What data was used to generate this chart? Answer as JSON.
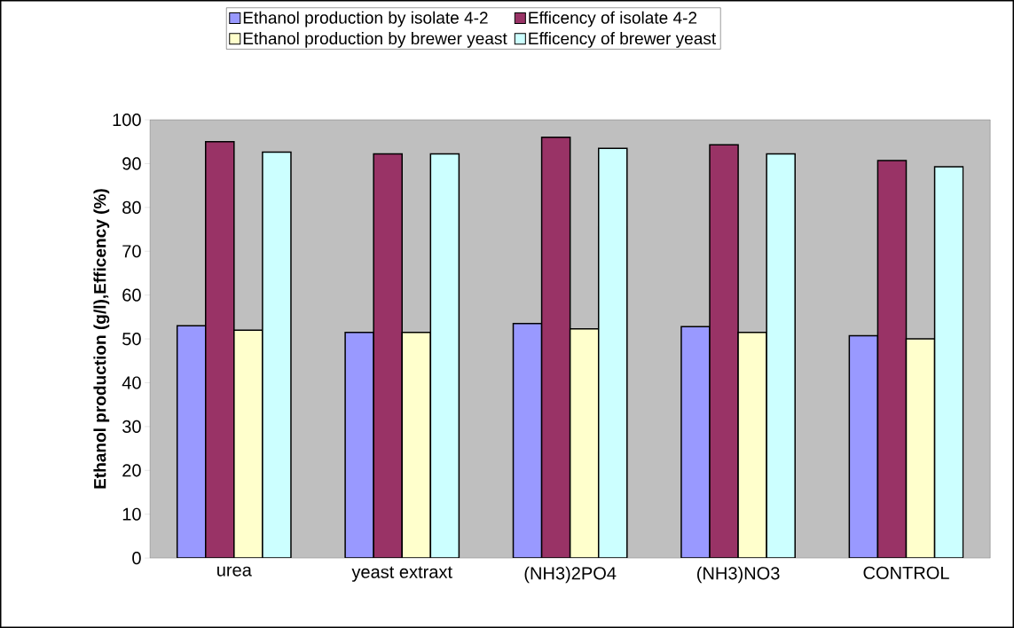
{
  "chart_data": {
    "type": "bar",
    "ylabel": "Ethanol production (g/l),Efficency (%)",
    "categories": [
      "urea",
      "yeast extraxt",
      "(NH3)2PO4",
      "(NH3)NO3",
      "CONTROL"
    ],
    "series": [
      {
        "name": "Ethanol production by isolate 4-2",
        "color": "#9999ff",
        "values": [
          53,
          51.5,
          53.5,
          52.8,
          50.7
        ]
      },
      {
        "name": "Efficency of isolate 4-2",
        "color": "#993366",
        "values": [
          95,
          92.2,
          96,
          94.3,
          90.7
        ]
      },
      {
        "name": "Ethanol production by brewer yeast",
        "color": "#ffffcc",
        "values": [
          52,
          51.5,
          52.3,
          51.5,
          50
        ]
      },
      {
        "name": "Efficency of brewer yeast",
        "color": "#ccffff",
        "values": [
          92.6,
          92.2,
          93.5,
          92.2,
          89.3
        ]
      }
    ],
    "ylim": [
      0,
      100
    ],
    "yticks": [
      0,
      10,
      20,
      30,
      40,
      50,
      60,
      70,
      80,
      90,
      100
    ],
    "legend": "top",
    "grid": false
  }
}
